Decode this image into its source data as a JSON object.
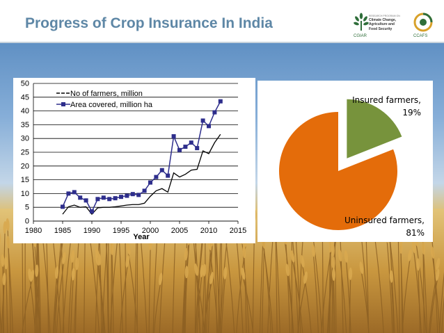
{
  "slide": {
    "title": "Progress of Crop Insurance In India"
  },
  "logos": {
    "cgiar_label": "CGIAR",
    "ccafs_label": "CCAFS",
    "program_text": [
      "RESEARCH PROGRAM ON",
      "Climate Change,",
      "Agriculture and",
      "Food Security"
    ],
    "colors": {
      "green": "#2f6e3a",
      "gold": "#d8a12a"
    }
  },
  "chart_data": [
    {
      "type": "line",
      "title": "",
      "xlabel": "Year",
      "ylabel": "",
      "xlim": [
        1980,
        2015
      ],
      "ylim": [
        0,
        50
      ],
      "xticks": [
        1980,
        1985,
        1990,
        1995,
        2000,
        2005,
        2010,
        2015
      ],
      "yticks": [
        0,
        5,
        10,
        15,
        20,
        25,
        30,
        35,
        40,
        45,
        50
      ],
      "grid": "horizontal",
      "legend": "top-left",
      "series": [
        {
          "name": "No of farmers, million",
          "color": "#000000",
          "marker": "none",
          "x": [
            1985,
            1986,
            1987,
            1988,
            1989,
            1990,
            1991,
            1992,
            1993,
            1994,
            1995,
            1996,
            1997,
            1998,
            1999,
            2000,
            2001,
            2002,
            2003,
            2004,
            2005,
            2006,
            2007,
            2008,
            2009,
            2010,
            2011,
            2012
          ],
          "values": [
            2.5,
            5.2,
            5.8,
            5.0,
            5.2,
            2.5,
            4.8,
            5.0,
            5.0,
            5.2,
            5.5,
            5.8,
            6.0,
            6.0,
            6.5,
            9.0,
            11.0,
            11.8,
            10.5,
            17.5,
            16.0,
            17.0,
            18.5,
            18.8,
            25.5,
            24.5,
            28.5,
            31.5
          ]
        },
        {
          "name": "Area covered, million ha",
          "color": "#2e2e8c",
          "marker": "square",
          "x": [
            1985,
            1986,
            1987,
            1988,
            1989,
            1990,
            1991,
            1992,
            1993,
            1994,
            1995,
            1996,
            1997,
            1998,
            1999,
            2000,
            2001,
            2002,
            2003,
            2004,
            2005,
            2006,
            2007,
            2008,
            2009,
            2010,
            2011,
            2012
          ],
          "values": [
            5.2,
            10.0,
            10.5,
            8.5,
            7.5,
            3.5,
            8.0,
            8.5,
            8.0,
            8.3,
            8.8,
            9.2,
            9.8,
            9.5,
            11.0,
            14.0,
            16.0,
            18.5,
            16.5,
            30.8,
            25.8,
            27.0,
            28.5,
            26.5,
            36.5,
            34.5,
            39.5,
            43.5
          ]
        }
      ]
    },
    {
      "type": "pie",
      "title": "",
      "legend": "none",
      "slices": [
        {
          "label": "Insured farmers,",
          "value": 19,
          "value_label": "19%",
          "color": "#77933c",
          "exploded": true
        },
        {
          "label": "Uninsured farmers,",
          "value": 81,
          "value_label": "81%",
          "color": "#e46c0a",
          "exploded": false
        }
      ]
    }
  ]
}
